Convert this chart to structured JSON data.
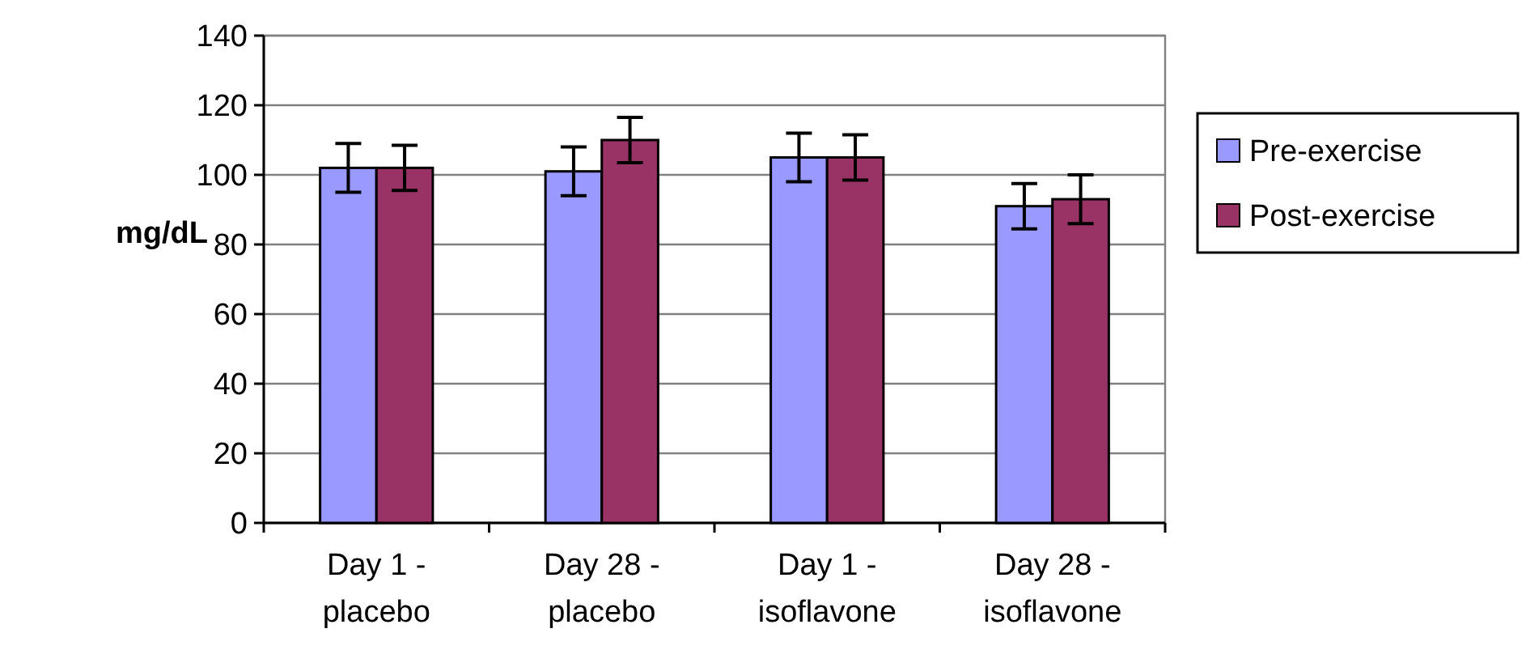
{
  "chart_data": {
    "type": "bar",
    "ylabel": "mg/dL",
    "categories": [
      "Day 1 -\nplacebo",
      "Day 28 -\nplacebo",
      "Day 1 -\nisoflavone",
      "Day 28 -\nisoflavone"
    ],
    "series": [
      {
        "name": "Pre-exercise",
        "color": "#9999ff",
        "values": [
          102,
          101,
          105,
          91
        ],
        "errors": [
          7,
          7,
          7,
          6.5
        ]
      },
      {
        "name": "Post-exercise",
        "color": "#993366",
        "values": [
          102,
          110,
          105,
          93
        ],
        "errors": [
          6.5,
          6.5,
          6.5,
          7
        ]
      }
    ],
    "ylim": [
      0,
      140
    ],
    "yticks": [
      0,
      20,
      40,
      60,
      80,
      100,
      120,
      140
    ],
    "grid": "y",
    "legend": "right"
  }
}
